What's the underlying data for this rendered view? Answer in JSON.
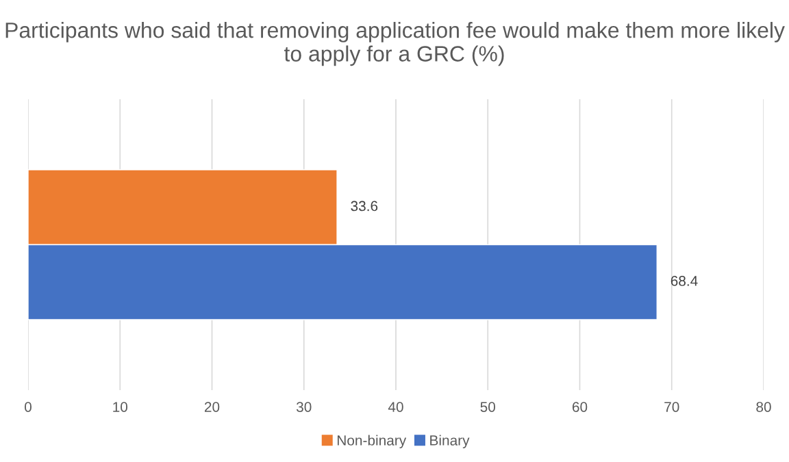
{
  "chart_data": {
    "type": "bar",
    "orientation": "horizontal",
    "title": "Participants who said that removing application fee would make them more likely to apply for a GRC (%)",
    "categories": [
      null
    ],
    "series": [
      {
        "name": "Non-binary",
        "color": "#ed7d31",
        "values": [
          33.6
        ]
      },
      {
        "name": "Binary",
        "color": "#4472c4",
        "values": [
          68.4
        ]
      }
    ],
    "xlim": [
      0,
      80
    ],
    "xticks": [
      0,
      10,
      20,
      30,
      40,
      50,
      60,
      70,
      80
    ],
    "grid": "x",
    "legend": "bottom",
    "data_labels": true
  }
}
